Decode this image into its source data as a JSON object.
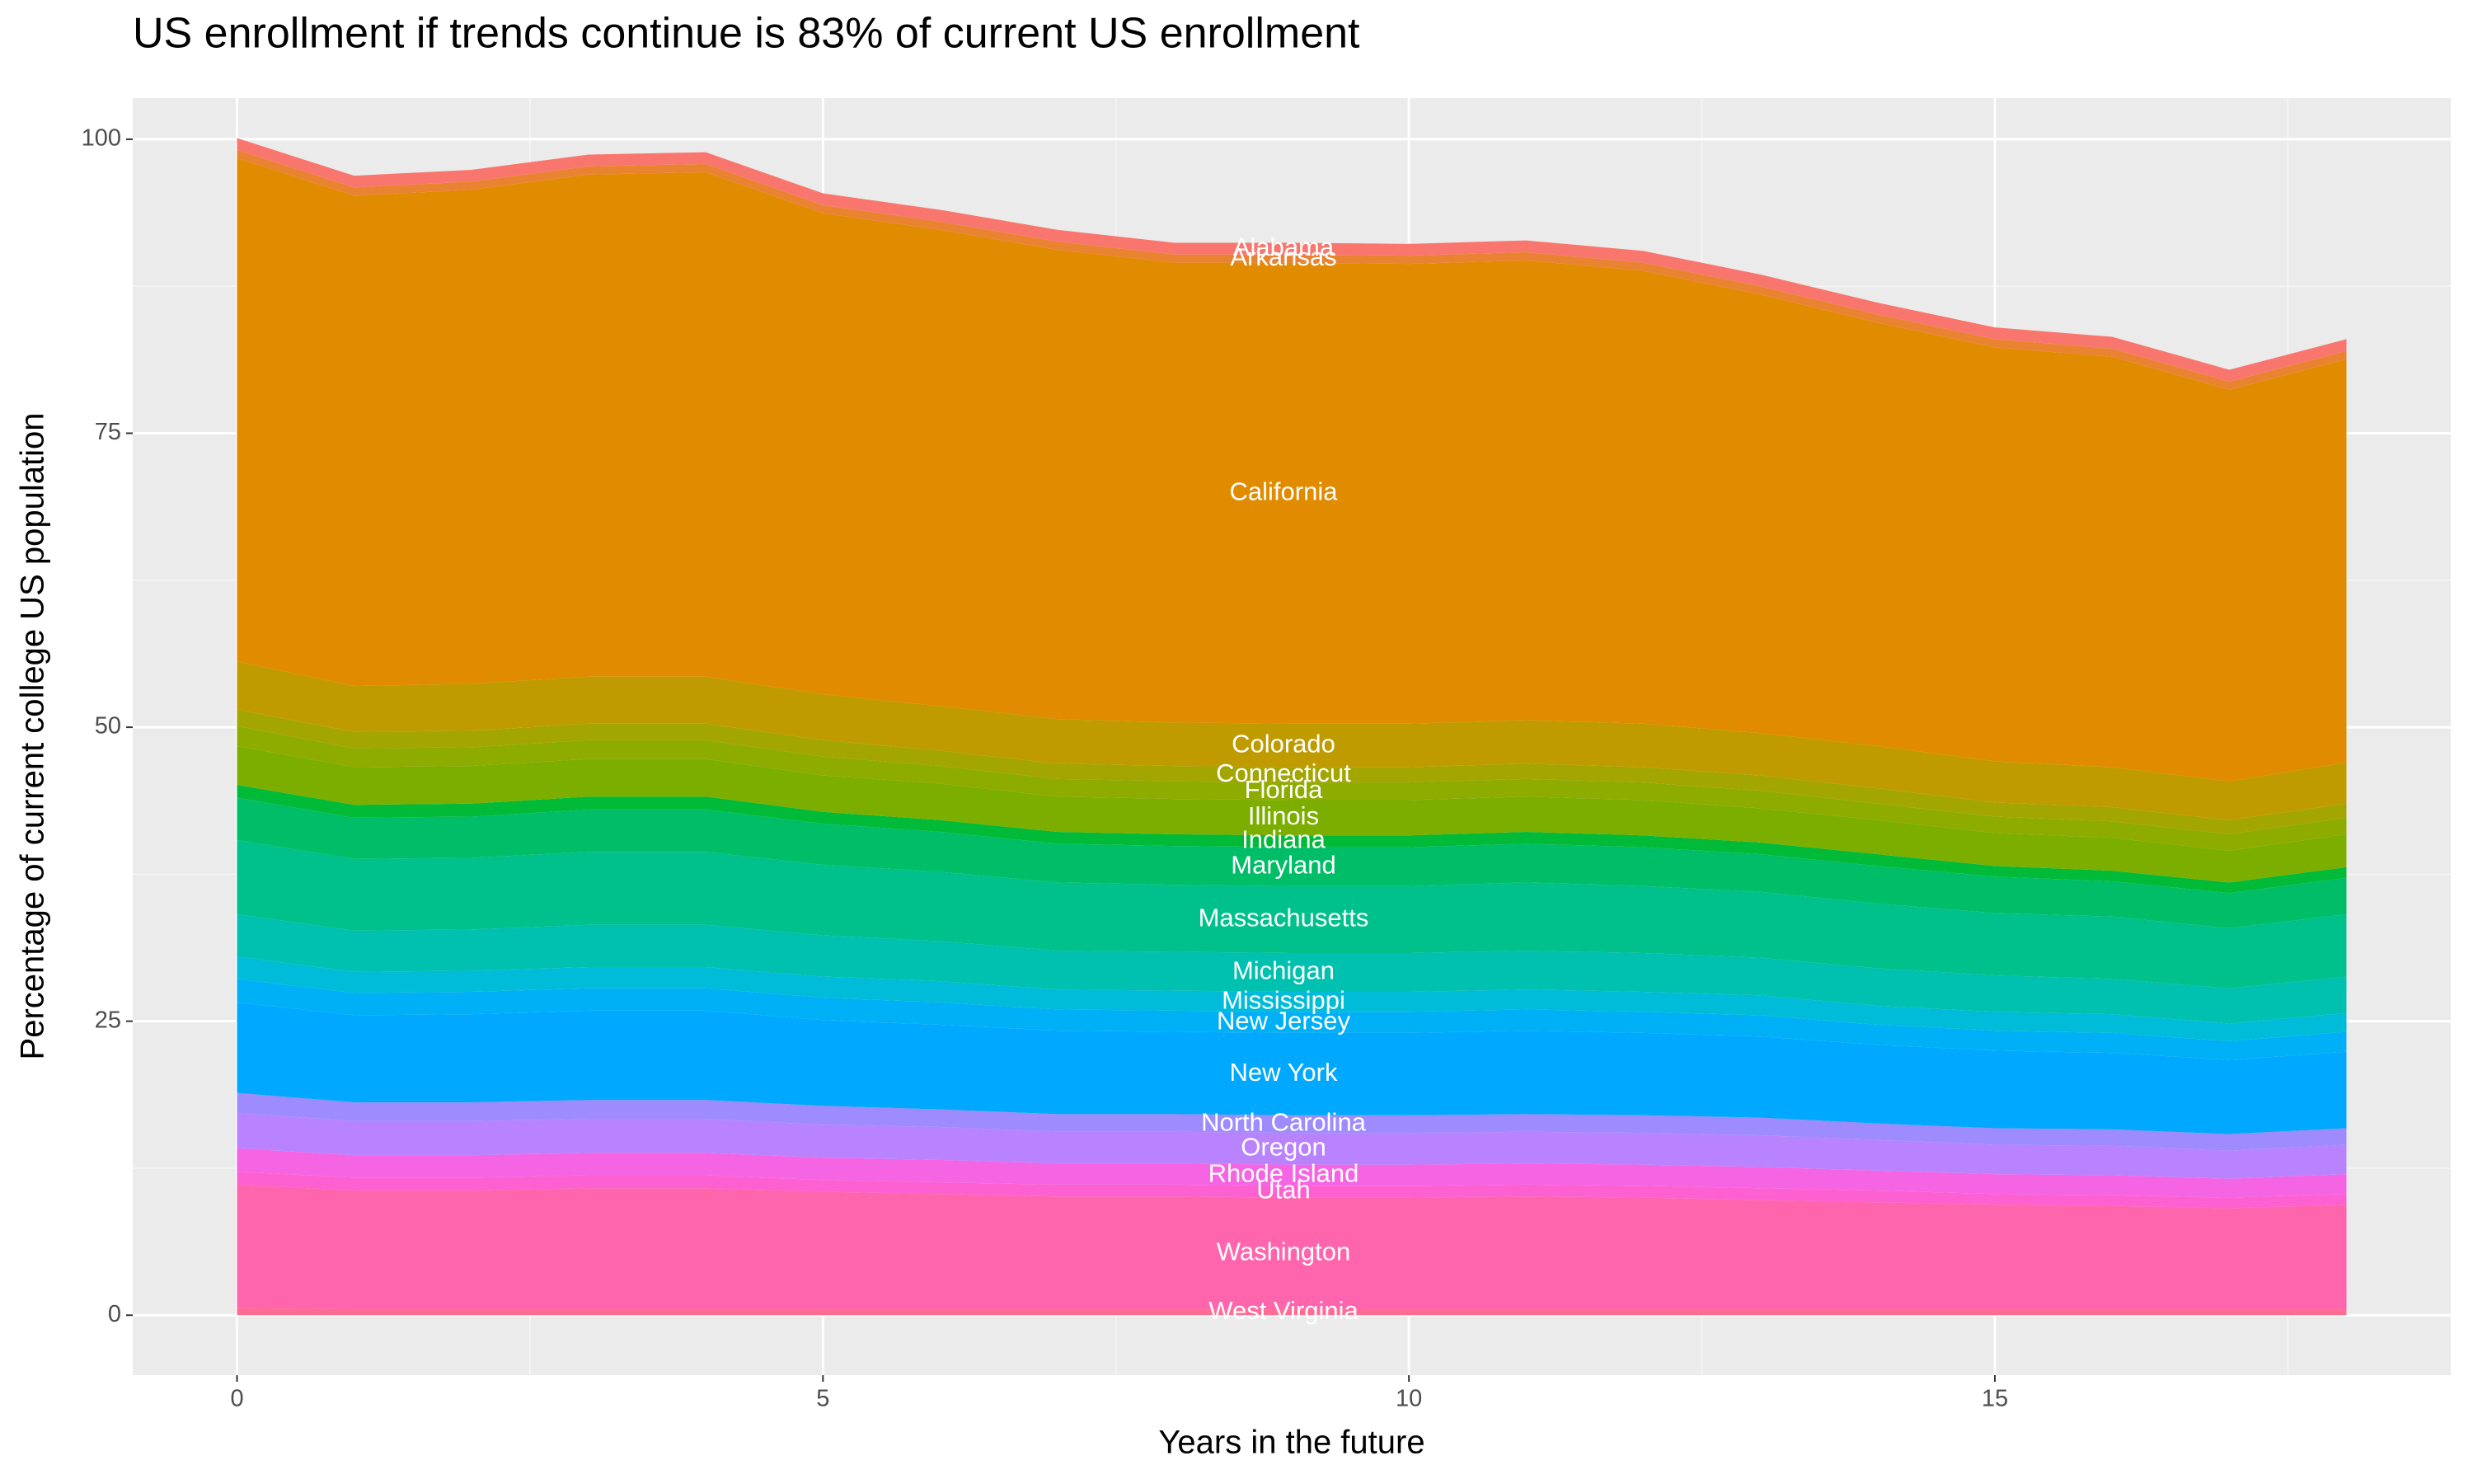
{
  "chart_data": {
    "type": "stacked_area",
    "title": "US enrollment if trends continue is 83% of current US enrollment",
    "x_label": "Years in the future",
    "y_label": "Percentage of current college US population",
    "x": [
      0,
      1,
      2,
      3,
      4,
      5,
      6,
      7,
      8,
      9,
      10,
      11,
      12,
      13,
      14,
      15,
      16,
      17,
      18
    ],
    "xlim": [
      -0.89,
      18.89
    ],
    "xticks": [
      0,
      5,
      10,
      15
    ],
    "ylim": [
      -5.1,
      103.5
    ],
    "yticks": [
      0,
      25,
      50,
      75,
      100
    ],
    "grid": true,
    "series": [
      {
        "name": "West Virginia",
        "color": "#FF6C91",
        "values": [
          0.6,
          0.5,
          0.5,
          0.5,
          0.5,
          0.5,
          0.5,
          0.5,
          0.5,
          0.5,
          0.5,
          0.5,
          0.5,
          0.5,
          0.5,
          0.5,
          0.5,
          0.5,
          0.5
        ]
      },
      {
        "name": "Washington",
        "color": "#FF65AC",
        "values": [
          10.5,
          10.1,
          10.1,
          10.3,
          10.3,
          10.0,
          9.8,
          9.6,
          9.6,
          9.5,
          9.5,
          9.6,
          9.5,
          9.3,
          9.1,
          8.9,
          8.8,
          8.6,
          8.9
        ]
      },
      {
        "name": "Utah",
        "color": "#FD61D1",
        "values": [
          1.1,
          1.1,
          1.1,
          1.1,
          1.1,
          1.0,
          1.0,
          1.0,
          1.0,
          1.0,
          1.0,
          1.0,
          1.0,
          1.0,
          1.0,
          0.9,
          0.9,
          0.9,
          0.9
        ]
      },
      {
        "name": "Rhode Island",
        "color": "#F564E3",
        "values": [
          2.0,
          1.9,
          1.9,
          1.9,
          1.9,
          1.9,
          1.9,
          1.8,
          1.8,
          1.8,
          1.8,
          1.8,
          1.8,
          1.8,
          1.7,
          1.7,
          1.7,
          1.6,
          1.7
        ]
      },
      {
        "name": "Oregon",
        "color": "#B983FF",
        "values": [
          3.0,
          2.9,
          2.9,
          2.9,
          2.9,
          2.8,
          2.8,
          2.7,
          2.7,
          2.7,
          2.7,
          2.7,
          2.7,
          2.7,
          2.6,
          2.5,
          2.5,
          2.4,
          2.5
        ]
      },
      {
        "name": "North Carolina",
        "color": "#9E8CFF",
        "values": [
          1.7,
          1.6,
          1.6,
          1.6,
          1.6,
          1.6,
          1.5,
          1.5,
          1.5,
          1.5,
          1.5,
          1.5,
          1.5,
          1.5,
          1.4,
          1.4,
          1.4,
          1.4,
          1.4
        ]
      },
      {
        "name": "New York",
        "color": "#00A9FF",
        "values": [
          7.7,
          7.4,
          7.5,
          7.6,
          7.6,
          7.3,
          7.2,
          7.1,
          7.0,
          7.0,
          7.0,
          7.1,
          7.0,
          6.9,
          6.7,
          6.6,
          6.5,
          6.3,
          6.5
        ]
      },
      {
        "name": "New Jersey",
        "color": "#00B0F6",
        "values": [
          2.0,
          1.9,
          1.9,
          1.9,
          1.9,
          1.9,
          1.9,
          1.8,
          1.8,
          1.8,
          1.8,
          1.8,
          1.8,
          1.8,
          1.7,
          1.7,
          1.7,
          1.6,
          1.7
        ]
      },
      {
        "name": "Mississippi",
        "color": "#00BCD8",
        "values": [
          1.9,
          1.8,
          1.8,
          1.8,
          1.8,
          1.8,
          1.8,
          1.7,
          1.7,
          1.7,
          1.7,
          1.7,
          1.7,
          1.7,
          1.6,
          1.6,
          1.6,
          1.5,
          1.6
        ]
      },
      {
        "name": "Michigan",
        "color": "#00C0AF",
        "values": [
          3.6,
          3.5,
          3.5,
          3.6,
          3.6,
          3.5,
          3.4,
          3.3,
          3.3,
          3.3,
          3.3,
          3.3,
          3.3,
          3.2,
          3.2,
          3.1,
          3.0,
          3.0,
          3.1
        ]
      },
      {
        "name": "Massachusetts",
        "color": "#00C08B",
        "values": [
          6.3,
          6.1,
          6.1,
          6.2,
          6.2,
          6.0,
          5.9,
          5.8,
          5.7,
          5.7,
          5.7,
          5.8,
          5.7,
          5.6,
          5.5,
          5.3,
          5.3,
          5.1,
          5.3
        ]
      },
      {
        "name": "Maryland",
        "color": "#00BE67",
        "values": [
          3.6,
          3.5,
          3.5,
          3.6,
          3.6,
          3.5,
          3.4,
          3.3,
          3.3,
          3.3,
          3.3,
          3.3,
          3.3,
          3.2,
          3.2,
          3.1,
          3.0,
          3.0,
          3.1
        ]
      },
      {
        "name": "Indiana",
        "color": "#00BA38",
        "values": [
          1.1,
          1.1,
          1.1,
          1.1,
          1.1,
          1.0,
          1.0,
          1.0,
          1.0,
          1.0,
          1.0,
          1.0,
          1.0,
          1.0,
          1.0,
          0.9,
          0.9,
          0.9,
          0.9
        ]
      },
      {
        "name": "Illinois",
        "color": "#7CAE00",
        "values": [
          3.3,
          3.2,
          3.2,
          3.2,
          3.2,
          3.1,
          3.1,
          3.0,
          3.0,
          3.0,
          3.0,
          3.0,
          3.0,
          2.9,
          2.9,
          2.8,
          2.8,
          2.7,
          2.8
        ]
      },
      {
        "name": "Florida",
        "color": "#8EAB00",
        "values": [
          1.7,
          1.6,
          1.6,
          1.6,
          1.6,
          1.6,
          1.5,
          1.5,
          1.5,
          1.5,
          1.5,
          1.5,
          1.5,
          1.5,
          1.4,
          1.4,
          1.4,
          1.4,
          1.4
        ]
      },
      {
        "name": "Connecticut",
        "color": "#A3A500",
        "values": [
          1.4,
          1.4,
          1.4,
          1.4,
          1.4,
          1.4,
          1.3,
          1.3,
          1.3,
          1.3,
          1.3,
          1.3,
          1.3,
          1.3,
          1.3,
          1.2,
          1.2,
          1.2,
          1.2
        ]
      },
      {
        "name": "Colorado",
        "color": "#C09B00",
        "values": [
          4.1,
          3.9,
          4.0,
          4.0,
          4.0,
          3.9,
          3.8,
          3.8,
          3.7,
          3.7,
          3.7,
          3.7,
          3.7,
          3.6,
          3.6,
          3.5,
          3.4,
          3.3,
          3.5
        ]
      },
      {
        "name": "California",
        "color": "#E08B00",
        "values": [
          42.8,
          41.7,
          42.0,
          42.7,
          42.9,
          40.9,
          40.5,
          39.9,
          39.1,
          39.2,
          39.1,
          39.1,
          38.5,
          37.3,
          36.0,
          35.2,
          34.9,
          33.3,
          34.3
        ]
      },
      {
        "name": "Arkansas",
        "color": "#EA8331",
        "values": [
          0.7,
          0.7,
          0.7,
          0.7,
          0.7,
          0.7,
          0.7,
          0.7,
          0.7,
          0.7,
          0.7,
          0.7,
          0.7,
          0.7,
          0.7,
          0.7,
          0.7,
          0.7,
          0.7
        ]
      },
      {
        "name": "Alabama",
        "color": "#F8766D",
        "values": [
          1.0,
          1.0,
          1.0,
          1.0,
          1.0,
          1.0,
          1.0,
          1.0,
          1.0,
          1.0,
          1.0,
          1.0,
          1.0,
          1.0,
          1.0,
          1.0,
          1.0,
          1.0,
          1.0
        ]
      }
    ]
  }
}
